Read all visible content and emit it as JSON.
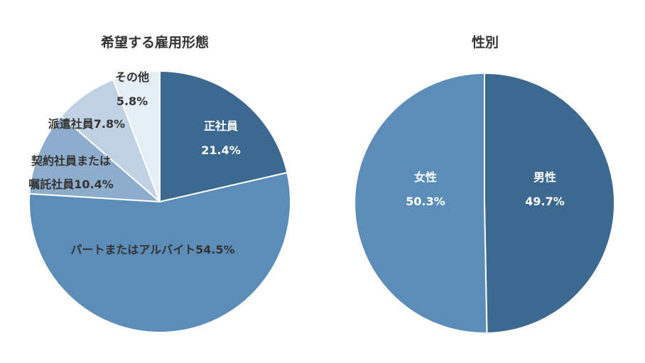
{
  "chart_data": [
    {
      "type": "pie",
      "title": "希望する雇用形態",
      "start": "top",
      "direction": "clockwise",
      "slices": [
        {
          "name": "正社員",
          "value": 21.4,
          "value_label": "21.4%",
          "color": "#3d6890",
          "label_color": "#ffffff"
        },
        {
          "name": "パートまたはアルバイト",
          "value": 54.5,
          "value_label": "54.5%",
          "color": "#5b8db8",
          "label_color": "#333333"
        },
        {
          "name": "契約社員または嘱託社員",
          "value": 10.4,
          "value_label": "10.4%",
          "color": "#8eaccc",
          "label_color": "#333333"
        },
        {
          "name": "派遣社員",
          "value": 7.8,
          "value_label": "7.8%",
          "color": "#bfd1e3",
          "label_color": "#333333"
        },
        {
          "name": "その他",
          "value": 5.8,
          "value_label": "5.8%",
          "color": "#e5edf5",
          "label_color": "#333333"
        }
      ]
    },
    {
      "type": "pie",
      "title": "性別",
      "start": "top",
      "direction": "clockwise",
      "slices": [
        {
          "name": "男性",
          "value": 49.7,
          "value_label": "49.7%",
          "color": "#3d6890",
          "label_color": "#ffffff"
        },
        {
          "name": "女性",
          "value": 50.3,
          "value_label": "50.3%",
          "color": "#5b8db8",
          "label_color": "#ffffff"
        }
      ]
    }
  ]
}
